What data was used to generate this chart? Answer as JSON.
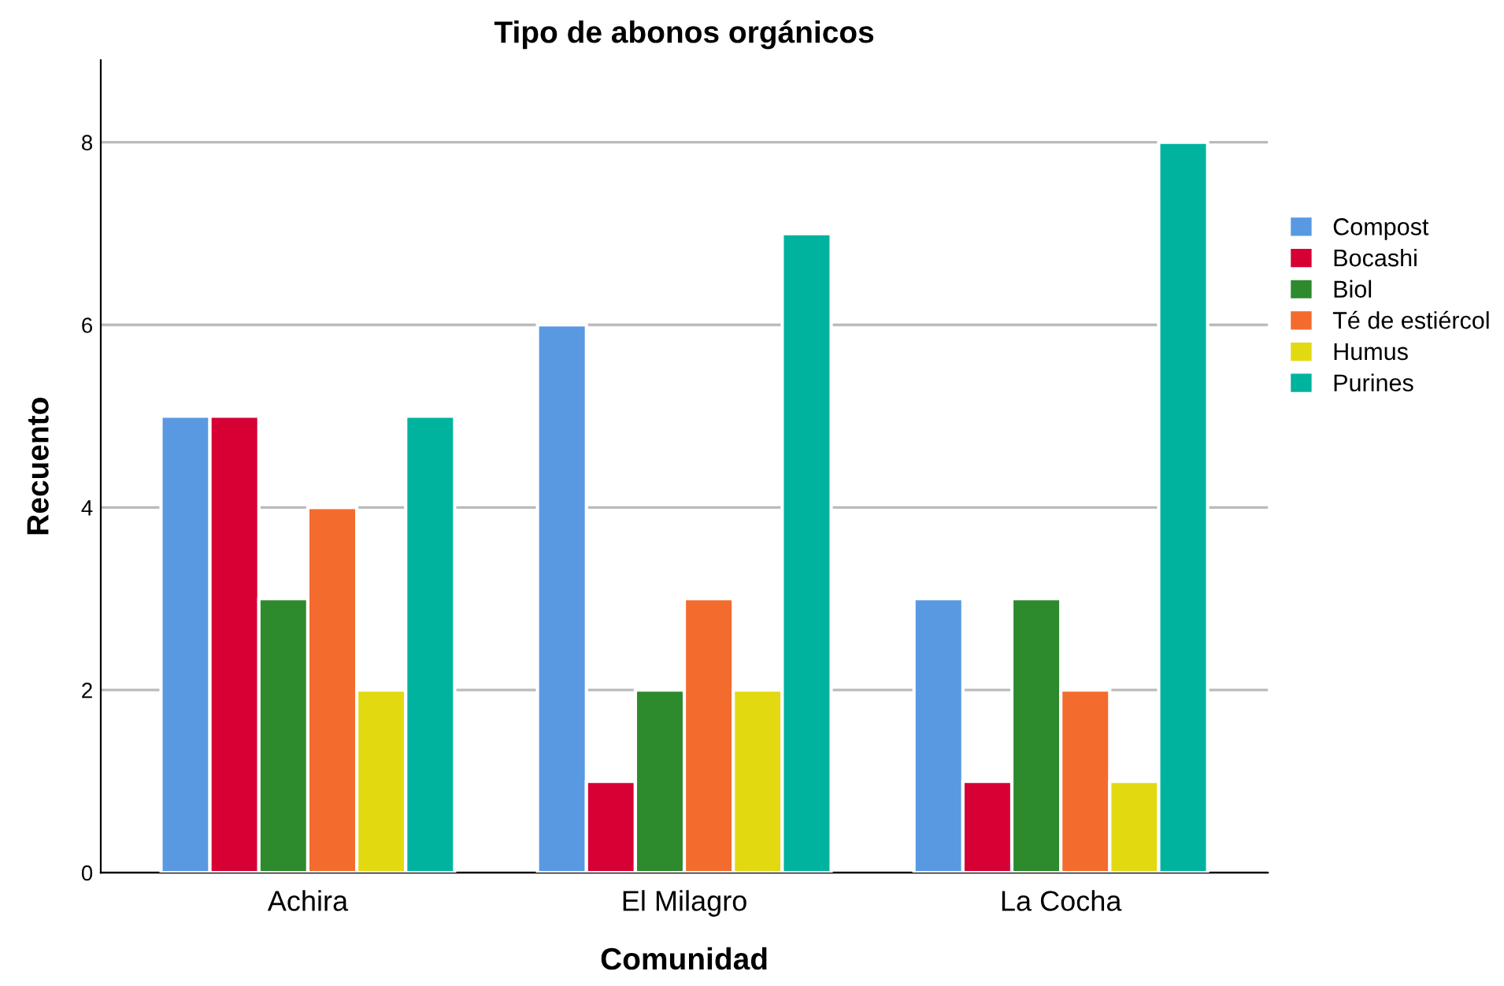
{
  "chart_data": {
    "type": "bar",
    "title": "Tipo de abonos orgánicos",
    "xlabel": "Comunidad",
    "ylabel": "Recuento",
    "categories": [
      "Achira",
      "El Milagro",
      "La Cocha"
    ],
    "series": [
      {
        "name": "Compost",
        "color": "#5899e2",
        "values": [
          5,
          6,
          3
        ]
      },
      {
        "name": "Bocashi",
        "color": "#d70035",
        "values": [
          5,
          1,
          1
        ]
      },
      {
        "name": "Biol",
        "color": "#2d8a2d",
        "values": [
          3,
          2,
          3
        ]
      },
      {
        "name": "Té de estiércol",
        "color": "#f46b2e",
        "values": [
          4,
          3,
          2
        ]
      },
      {
        "name": "Humus",
        "color": "#e3d911",
        "values": [
          2,
          2,
          1
        ]
      },
      {
        "name": "Purines",
        "color": "#00b39f",
        "values": [
          5,
          7,
          8
        ]
      }
    ],
    "ylim": [
      0,
      8.9
    ],
    "yticks": [
      0,
      2,
      4,
      6,
      8
    ],
    "grid": "y",
    "legend": "right"
  }
}
